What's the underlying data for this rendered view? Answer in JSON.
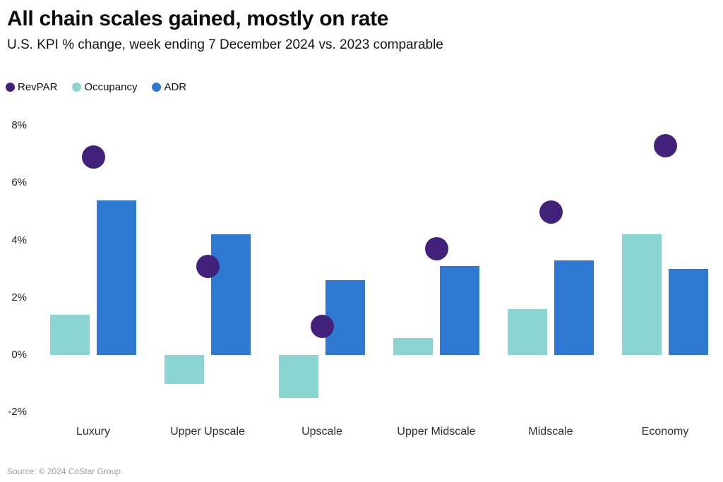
{
  "header": {
    "title": "All chain scales gained, mostly on rate",
    "subtitle": "U.S. KPI % change, week ending 7 December 2024 vs. 2023 comparable"
  },
  "footer": {
    "source": "Source: © 2024 CoStar Group"
  },
  "colors": {
    "revpar": "#41217a",
    "occupancy": "#8ad5d1",
    "adr": "#2e79d2",
    "background": "#ffffff",
    "tick_text": "#1f1f1f",
    "source_text": "#9c9c9c"
  },
  "chart_data": {
    "type": "bar",
    "subtype": "grouped-bars-with-dot-overlay",
    "title": "All chain scales gained, mostly on rate",
    "subtitle": "U.S. KPI % change, week ending 7 December 2024 vs. 2023 comparable",
    "categories": [
      "Luxury",
      "Upper Upscale",
      "Upscale",
      "Upper Midscale",
      "Midscale",
      "Economy"
    ],
    "series": [
      {
        "name": "RevPAR",
        "render": "dot",
        "color": "#41217a",
        "values": [
          6.9,
          3.1,
          1.0,
          3.7,
          5.0,
          7.3
        ]
      },
      {
        "name": "Occupancy",
        "render": "bar",
        "color": "#8ad5d1",
        "values": [
          1.4,
          -1.0,
          -1.5,
          0.6,
          1.6,
          4.2
        ]
      },
      {
        "name": "ADR",
        "render": "bar",
        "color": "#2e79d2",
        "values": [
          5.4,
          4.2,
          2.6,
          3.1,
          3.3,
          3.0
        ]
      }
    ],
    "xlabel": "",
    "ylabel": "",
    "yticks": [
      8,
      6,
      4,
      2,
      0,
      -2
    ],
    "ytick_suffix": "%",
    "ylim": [
      -2.6,
      8.5
    ],
    "grid": false,
    "legend_position": "top-left"
  }
}
